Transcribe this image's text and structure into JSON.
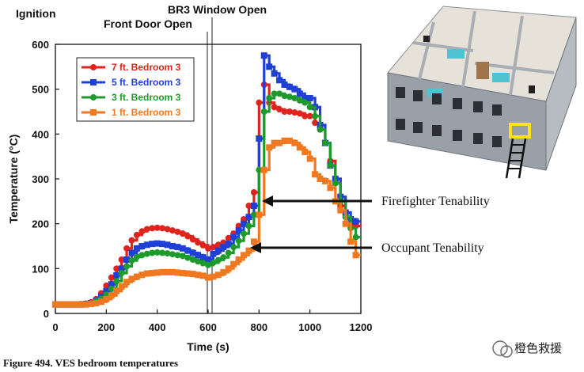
{
  "chart_data": {
    "type": "line",
    "xlabel": "Time (s)",
    "ylabel": "Temperature (°C)",
    "xlim": [
      0,
      1200
    ],
    "ylim": [
      0,
      600
    ],
    "xticks": [
      0,
      200,
      400,
      600,
      800,
      1000,
      1200
    ],
    "yticks": [
      0,
      100,
      200,
      300,
      400,
      500,
      600
    ],
    "grid": false,
    "legend_position": "top-left",
    "series": [
      {
        "name": "7 ft. Bedroom 3",
        "color": "#e0231c",
        "marker": "circle",
        "x": [
          0,
          20,
          40,
          60,
          80,
          100,
          120,
          140,
          160,
          180,
          200,
          220,
          240,
          260,
          280,
          300,
          320,
          340,
          360,
          380,
          400,
          420,
          440,
          460,
          480,
          500,
          520,
          540,
          560,
          580,
          600,
          620,
          640,
          660,
          680,
          700,
          720,
          740,
          760,
          780,
          800,
          820,
          840,
          860,
          880,
          900,
          920,
          940,
          960,
          980,
          1000,
          1020,
          1040,
          1060,
          1080,
          1100,
          1120,
          1140,
          1160,
          1180
        ],
        "y": [
          20,
          20,
          20,
          20,
          20,
          21,
          22,
          25,
          32,
          45,
          62,
          80,
          100,
          120,
          145,
          163,
          175,
          183,
          188,
          190,
          191,
          190,
          188,
          185,
          182,
          178,
          172,
          165,
          158,
          152,
          145,
          148,
          153,
          158,
          168,
          178,
          195,
          210,
          240,
          270,
          470,
          510,
          470,
          460,
          455,
          450,
          450,
          448,
          446,
          440,
          440,
          425,
          410,
          380,
          340,
          300,
          240,
          215,
          200,
          195
        ]
      },
      {
        "name": "5 ft. Bedroom 3",
        "color": "#1f3fd6",
        "marker": "square",
        "x": [
          0,
          20,
          40,
          60,
          80,
          100,
          120,
          140,
          160,
          180,
          200,
          220,
          240,
          260,
          280,
          300,
          320,
          340,
          360,
          380,
          400,
          420,
          440,
          460,
          480,
          500,
          520,
          540,
          560,
          580,
          600,
          620,
          640,
          660,
          680,
          700,
          720,
          740,
          760,
          780,
          800,
          820,
          840,
          860,
          880,
          900,
          920,
          940,
          960,
          980,
          1000,
          1020,
          1040,
          1060,
          1080,
          1100,
          1120,
          1140,
          1160,
          1180
        ],
        "y": [
          20,
          20,
          20,
          20,
          20,
          20,
          21,
          23,
          28,
          37,
          50,
          65,
          85,
          100,
          120,
          135,
          145,
          150,
          153,
          155,
          156,
          155,
          153,
          150,
          148,
          145,
          140,
          135,
          130,
          125,
          120,
          133,
          140,
          148,
          155,
          170,
          185,
          200,
          215,
          240,
          390,
          575,
          550,
          535,
          520,
          510,
          505,
          500,
          490,
          480,
          480,
          460,
          420,
          380,
          330,
          300,
          260,
          225,
          210,
          205
        ]
      },
      {
        "name": "3 ft. Bedroom 3",
        "color": "#1e9a2c",
        "marker": "circle",
        "x": [
          0,
          20,
          40,
          60,
          80,
          100,
          120,
          140,
          160,
          180,
          200,
          220,
          240,
          260,
          280,
          300,
          320,
          340,
          360,
          380,
          400,
          420,
          440,
          460,
          480,
          500,
          520,
          540,
          560,
          580,
          600,
          620,
          640,
          660,
          680,
          700,
          720,
          740,
          760,
          780,
          800,
          820,
          840,
          860,
          880,
          900,
          920,
          940,
          960,
          980,
          1000,
          1020,
          1040,
          1060,
          1080,
          1100,
          1120,
          1140,
          1160,
          1180
        ],
        "y": [
          20,
          20,
          20,
          20,
          20,
          20,
          21,
          23,
          27,
          33,
          42,
          55,
          72,
          90,
          105,
          118,
          126,
          130,
          133,
          135,
          136,
          135,
          134,
          132,
          130,
          128,
          124,
          120,
          116,
          112,
          108,
          113,
          119,
          125,
          135,
          148,
          162,
          178,
          195,
          220,
          320,
          450,
          480,
          490,
          490,
          485,
          483,
          480,
          475,
          470,
          460,
          440,
          410,
          380,
          330,
          290,
          250,
          215,
          190,
          170
        ]
      },
      {
        "name": "1 ft. Bedroom 3",
        "color": "#f07820",
        "marker": "square",
        "x": [
          0,
          20,
          40,
          60,
          80,
          100,
          120,
          140,
          160,
          180,
          200,
          220,
          240,
          260,
          280,
          300,
          320,
          340,
          360,
          380,
          400,
          420,
          440,
          460,
          480,
          500,
          520,
          540,
          560,
          580,
          600,
          620,
          640,
          660,
          680,
          700,
          720,
          740,
          760,
          780,
          800,
          820,
          840,
          860,
          880,
          900,
          920,
          940,
          960,
          980,
          1000,
          1020,
          1040,
          1060,
          1080,
          1100,
          1120,
          1140,
          1160,
          1180
        ],
        "y": [
          20,
          20,
          20,
          20,
          20,
          20,
          20,
          21,
          23,
          26,
          32,
          40,
          50,
          60,
          70,
          77,
          82,
          86,
          89,
          90,
          91,
          92,
          92,
          92,
          91,
          90,
          89,
          88,
          86,
          84,
          80,
          82,
          86,
          92,
          100,
          110,
          120,
          130,
          140,
          160,
          220,
          320,
          370,
          380,
          380,
          385,
          385,
          380,
          370,
          360,
          345,
          310,
          300,
          295,
          280,
          250,
          230,
          200,
          160,
          130
        ]
      }
    ]
  },
  "annotations": {
    "ignition": "Ignition",
    "front_door": "Front Door Open",
    "br3_window": "BR3 Window Open",
    "firefighter": "Firefighter Tenability",
    "occupant": "Occupant Tenability"
  },
  "caption": "Figure 494.  VES bedroom temperatures",
  "watermark": "橙色救援",
  "colors": {
    "house_wall": "#9aa0a8",
    "house_floor": "#e8e4dc",
    "ladder_highlight": "#ffe21a"
  }
}
